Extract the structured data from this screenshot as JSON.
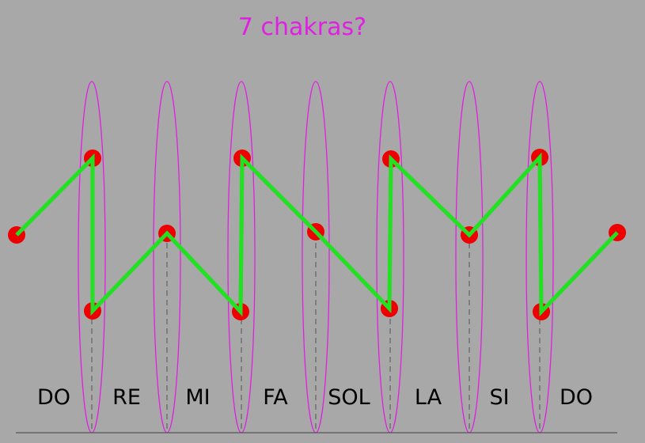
{
  "title": "7 chakras?",
  "notes": [
    "DO",
    "RE",
    "MI",
    "FA",
    "SOL",
    "LA",
    "SI",
    "DO"
  ],
  "colors": {
    "background": "#a8a8a8",
    "ellipse": "#e020e0",
    "path": "#22e022",
    "node": "#ee0000",
    "dashes": "#555555",
    "baseline": "#555555",
    "title": "#e020e0",
    "notes": "#000000"
  }
}
